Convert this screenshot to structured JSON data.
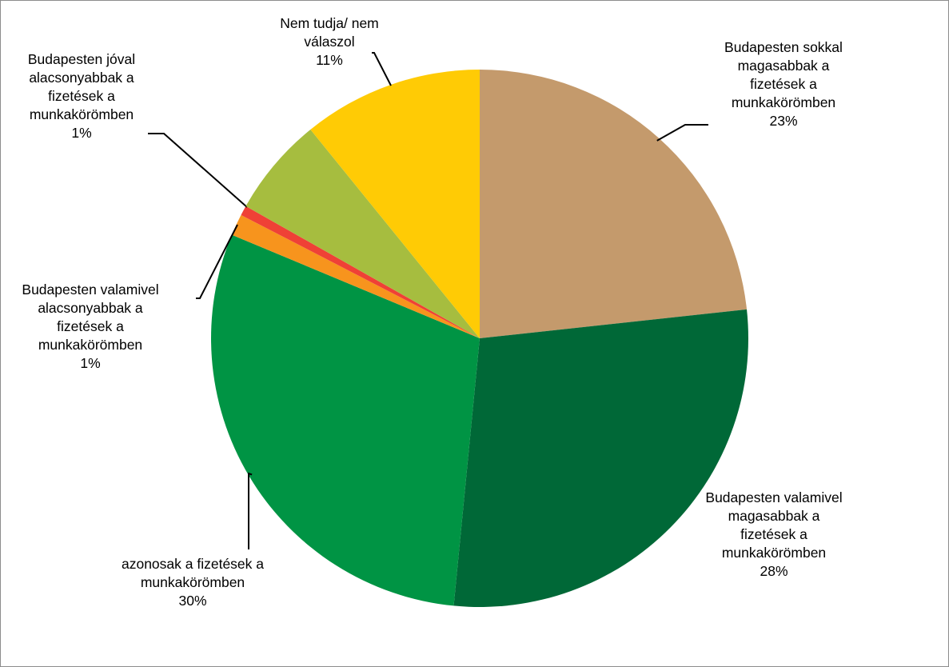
{
  "chart_data": {
    "type": "pie",
    "slices": [
      {
        "label": "Budapesten sokkal\nmagasabbak a\nfizetések a\nmunkakörömben",
        "pct": "23%",
        "value": 23.4,
        "color": "#c49a6c"
      },
      {
        "label": "Budapesten valamivel\nmagasabbak a\nfizetések a\nmunkakörömben",
        "pct": "28%",
        "value": 28.4,
        "color": "#006837"
      },
      {
        "label": "azonosak a fizetések a\nmunkakörömben",
        "pct": "30%",
        "value": 29.9,
        "color": "#009444"
      },
      {
        "label": "Budapesten valamivel\nalacsonyabbak a\nfizetések a\nmunkakörömben",
        "pct": "1%",
        "value": 1.3,
        "color": "#f7941d"
      },
      {
        "label": "Budapesten jóval\nalacsonyabbak a\nfizetések a\nmunkakörömben",
        "pct": "1%",
        "value": 0.6,
        "color": "#ef4136"
      },
      {
        "label": "",
        "pct": "",
        "value": 6.0,
        "color": "#a6bd3f"
      },
      {
        "label": "Nem tudja/ nem\nválaszol",
        "pct": "11%",
        "value": 10.9,
        "color": "#ffcb05"
      }
    ],
    "start_angle": "12 o'clock",
    "direction": "clockwise",
    "legend": "none",
    "data_labels": "outside with leader lines"
  }
}
